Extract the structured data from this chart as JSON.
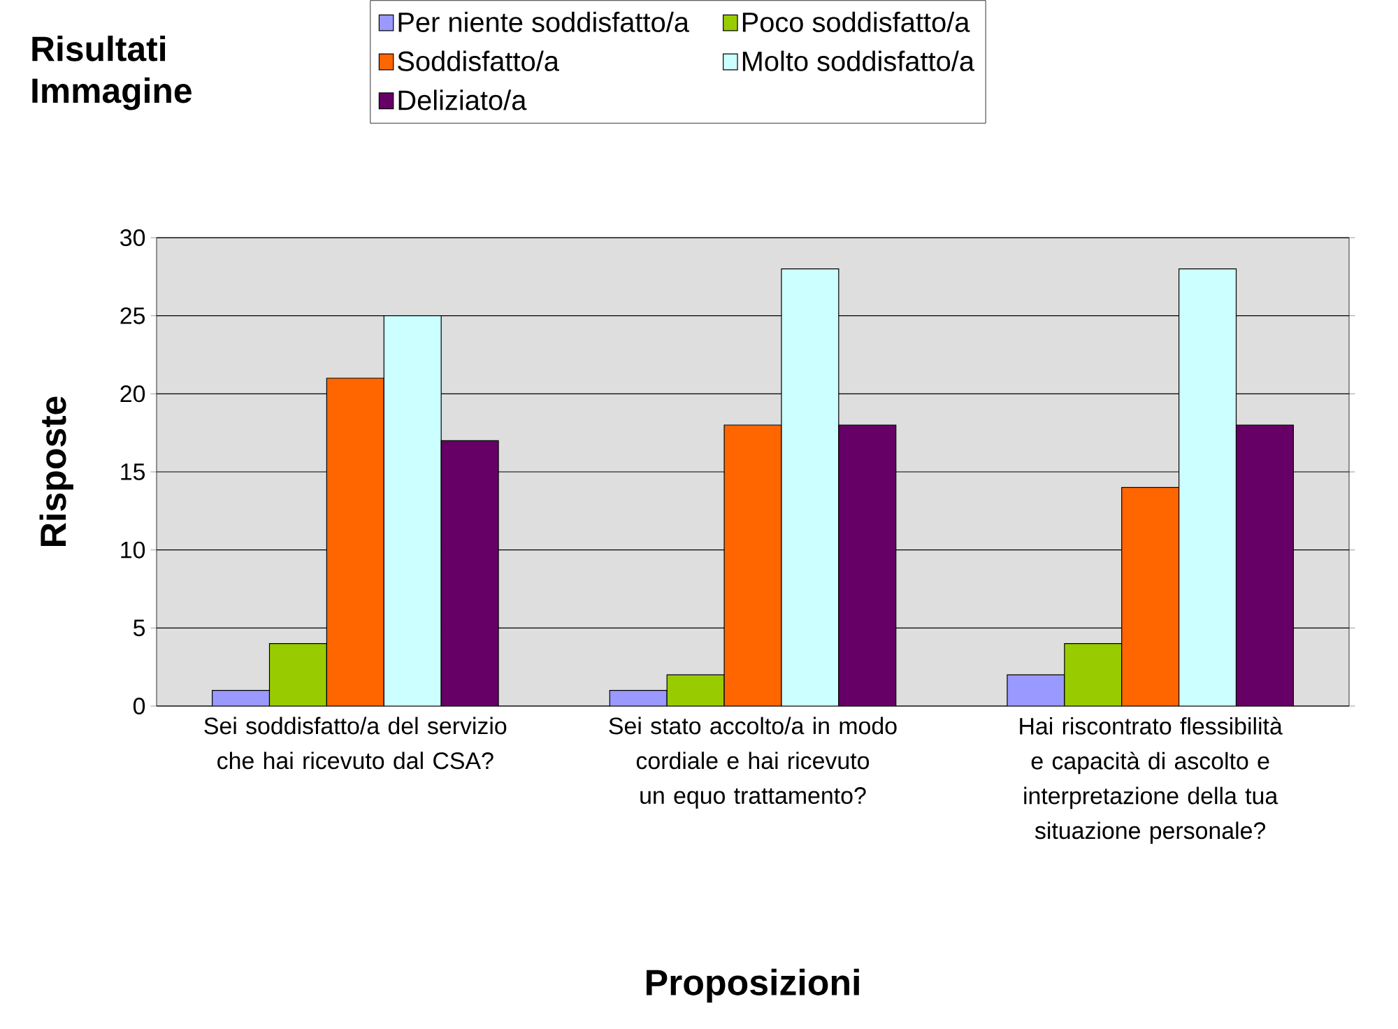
{
  "chart_data": {
    "type": "bar",
    "title": "Risultati Immagine",
    "xlabel": "Proposizioni",
    "ylabel": "Risposte",
    "categories": [
      "Sei soddisfatto/a del servizio che hai ricevuto dal CSA?",
      "Sei stato accolto/a in modo cordiale e hai ricevuto un equo trattamento?",
      "Hai riscontrato flessibilità e capacità di ascolto e interpretazione della tua situazione personale?"
    ],
    "series": [
      {
        "name": "Per niente soddisfatto/a",
        "color": "#9999ff",
        "values": [
          1,
          1,
          2
        ]
      },
      {
        "name": "Poco soddisfatto/a",
        "color": "#99cc00",
        "values": [
          4,
          2,
          4
        ]
      },
      {
        "name": "Soddisfatto/a",
        "color": "#ff6600",
        "values": [
          21,
          18,
          14
        ]
      },
      {
        "name": "Molto soddisfatto/a",
        "color": "#ccffff",
        "values": [
          25,
          28,
          28
        ]
      },
      {
        "name": "Deliziato/a",
        "color": "#660066",
        "values": [
          17,
          18,
          18
        ]
      }
    ],
    "ylim": [
      0,
      30
    ],
    "yticks": [
      0,
      5,
      10,
      15,
      20,
      25,
      30
    ],
    "grid": "y",
    "legend": "top"
  }
}
